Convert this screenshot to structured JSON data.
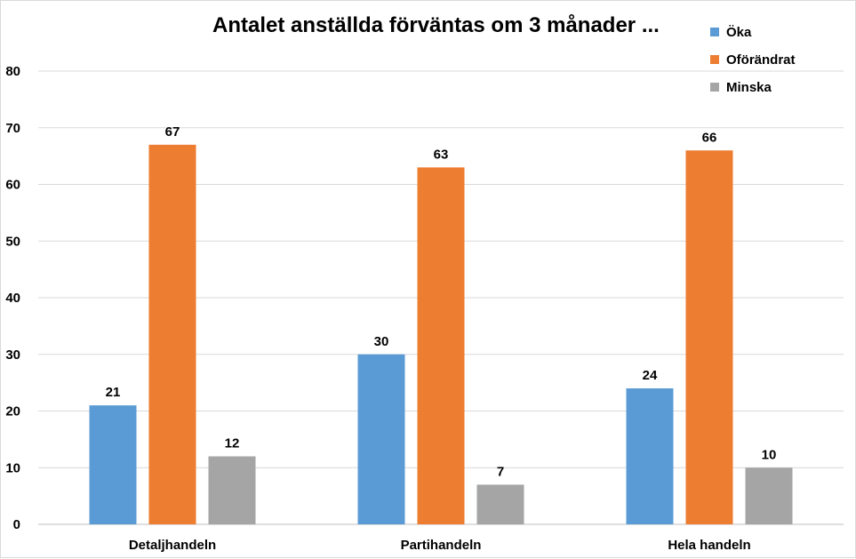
{
  "chart_data": {
    "type": "bar",
    "title": "Antalet anställda förväntas om 3 månader ...",
    "categories": [
      "Detaljhandeln",
      "Partihandeln",
      "Hela handeln"
    ],
    "series": [
      {
        "name": "Öka",
        "color": "#5b9bd5",
        "values": [
          21,
          30,
          24
        ]
      },
      {
        "name": "Oförändrat",
        "color": "#ed7d31",
        "values": [
          67,
          63,
          66
        ]
      },
      {
        "name": "Minska",
        "color": "#a5a5a5",
        "values": [
          12,
          7,
          10
        ]
      }
    ],
    "ylim": [
      0,
      80
    ],
    "yticks": [
      0,
      10,
      20,
      30,
      40,
      50,
      60,
      70,
      80
    ],
    "grid": true,
    "legend": "top-right"
  }
}
